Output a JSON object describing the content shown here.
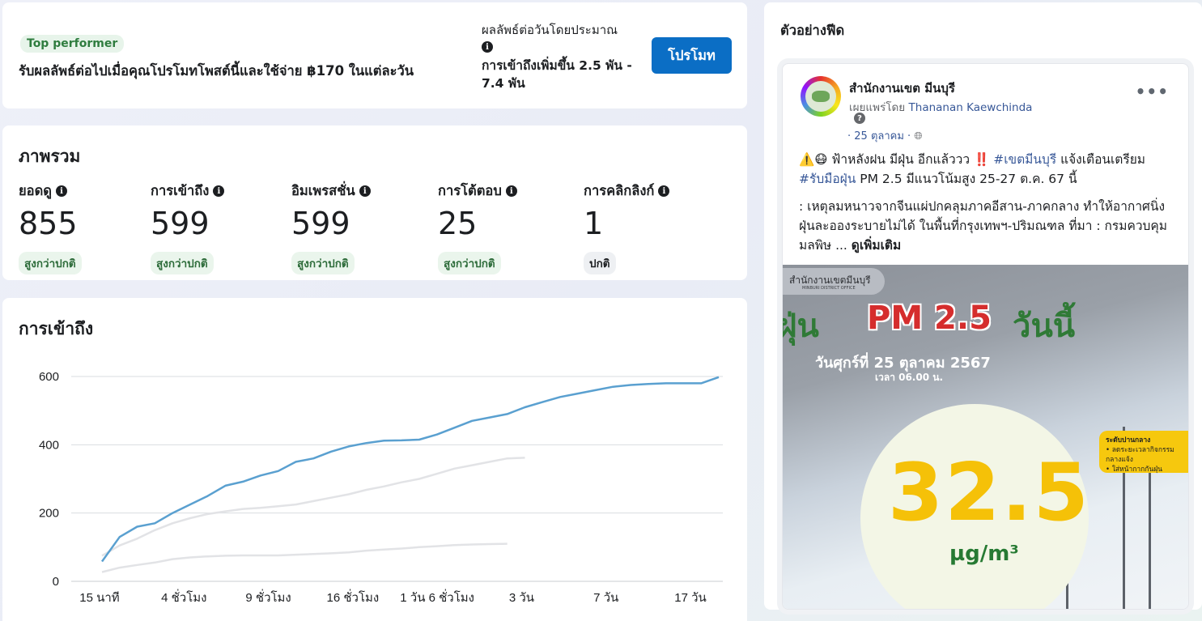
{
  "promo": {
    "badge": "Top performer",
    "message": "รับผลลัพธ์ต่อไปเมื่อคุณโปรโมทโพสต์นี้และใช้จ่าย ฿170 ในแต่ละวัน",
    "result_label": "ผลลัพธ์ต่อวันโดยประมาณ",
    "result_value": "การเข้าถึงเพิ่มขึ้น 2.5 พัน - 7.4 พัน",
    "button": "โปรโมท"
  },
  "overview": {
    "title": "ภาพรวม",
    "metrics": [
      {
        "label": "ยอดดู",
        "value": "855",
        "status": "สูงกว่าปกติ"
      },
      {
        "label": "การเข้าถึง",
        "value": "599",
        "status": "สูงกว่าปกติ"
      },
      {
        "label": "อิมเพรสชั่น",
        "value": "599",
        "status": "สูงกว่าปกติ"
      },
      {
        "label": "การโต้ตอบ",
        "value": "25",
        "status": "สูงกว่าปกติ"
      },
      {
        "label": "การคลิกลิงก์",
        "value": "1",
        "status": "ปกติ"
      }
    ]
  },
  "reach": {
    "title": "การเข้าถึง"
  },
  "chart_data": {
    "type": "line",
    "title": "การเข้าถึง",
    "xlabel": "",
    "ylabel": "",
    "ylim": [
      0,
      600
    ],
    "yticks": [
      0,
      200,
      400,
      600
    ],
    "x_tick_labels": [
      "15 นาที",
      "4 ชั่วโมง",
      "9 ชั่วโมง",
      "16 ชั่วโมง",
      "1 วัน 6 ชั่วโมง",
      "3 วัน",
      "7 วัน",
      "17 วัน"
    ],
    "grid": true,
    "legend": "none",
    "series": [
      {
        "color": "#5aa0d0",
        "values": [
          58,
          130,
          160,
          170,
          200,
          225,
          250,
          280,
          292,
          310,
          323,
          350,
          360,
          380,
          395,
          405,
          412,
          413,
          415,
          430,
          450,
          470,
          480,
          490,
          510,
          525,
          540,
          550,
          560,
          570,
          575,
          578,
          580,
          580,
          580,
          598
        ]
      },
      {
        "color": "#e2e3e6",
        "values": [
          75,
          105,
          125,
          150,
          170,
          185,
          197,
          205,
          212,
          215,
          220,
          225,
          235,
          245,
          255,
          268,
          278,
          290,
          300,
          315,
          330,
          340,
          350,
          360,
          362
        ]
      },
      {
        "color": "#e2e3e6",
        "values": [
          27,
          40,
          48,
          55,
          65,
          70,
          73,
          75,
          76,
          76,
          76,
          78,
          80,
          82,
          85,
          90,
          93,
          96,
          100,
          103,
          106,
          108,
          109,
          110
        ]
      }
    ]
  },
  "feed": {
    "title": "ตัวอย่างฟีด",
    "post": {
      "page_name": "สำนักงานเขต มีนบุรี",
      "published_by": "เผยแพร่โดย",
      "author": "Thananan Kaewchinda",
      "date": "· 25 ตุลาคม ·",
      "line1_a": "⚠️😷 ฟ้าหลังฝน มีฝุ่น อีกแล้ววว ‼️ ",
      "hashtag1": "#เขตมีนบุรี",
      "line1_b": " แจ้งเตือนเตรียม ",
      "hashtag2": "#รับมือฝุ่น",
      "line1_c": " PM 2.5 มีแนวโน้มสูง 25-27 ต.ค. 67 นี้",
      "line2": ": เหตุลมหนาวจากจีนแผ่ปกคลุมภาคอีสาน-ภาคกลาง ทำให้อากาศนิ่ง ฝุ่นละอองระบายไม่ได้ ในพื้นที่กรุงเทพฯ-ปริมณฑล ที่มา : กรมควบคุมมลพิษ ... ",
      "see_more": "ดูเพิ่มเติม",
      "image": {
        "brand": "สำนักงานเขตมีนบุรี",
        "brand_sub": "MINBURI DISTRICT OFFICE",
        "left_word": "ฝุ่น",
        "pm": "PM 2.5",
        "today": "วันนี้",
        "date": "วันศุกร์ที่ 25 ตุลาคม 2567",
        "time": "เวลา 06.00 น.",
        "level": "ระดับปานกลาง",
        "level_note1": "• ลดระยะเวลากิจกรรมกลางแจ้ง",
        "level_note2": "• ใส่หน้ากากกันฝุ่น",
        "value": "32.5",
        "unit": "µg/m³"
      }
    }
  }
}
